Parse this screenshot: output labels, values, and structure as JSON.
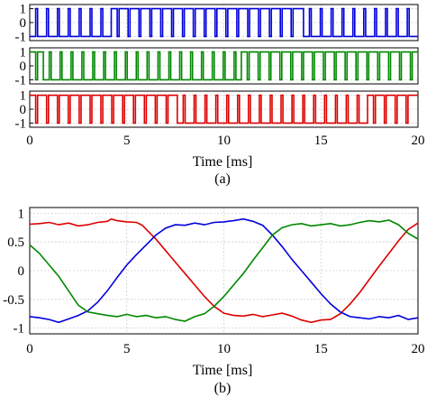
{
  "chart_data": [
    {
      "panel": "(a)",
      "type": "line",
      "xlabel": "Time [ms]",
      "xlim": [
        0,
        20
      ],
      "xticks": [
        0,
        5,
        10,
        15,
        20
      ],
      "grid": true,
      "subplots": [
        {
          "color": "#0000dd",
          "ylim": [
            -1.3,
            1.3
          ],
          "yticks": [
            1,
            0,
            -1
          ],
          "x": [
            0,
            4.2,
            14.1,
            20
          ],
          "y": [
            -1,
            1,
            -1,
            -1
          ]
        },
        {
          "color": "#008800",
          "ylim": [
            -1.3,
            1.3
          ],
          "yticks": [
            1,
            0,
            -1
          ],
          "x": [
            0,
            0.7,
            10.9,
            20
          ],
          "y": [
            1,
            -1,
            1,
            1
          ]
        },
        {
          "color": "#dd0000",
          "ylim": [
            -1.3,
            1.3
          ],
          "yticks": [
            1,
            0,
            -1
          ],
          "x": [
            0,
            7.6,
            17.4,
            20
          ],
          "y": [
            1,
            -1,
            1,
            1
          ]
        }
      ]
    },
    {
      "panel": "(b)",
      "type": "line",
      "xlabel": "Time [ms]",
      "xlim": [
        0,
        20
      ],
      "ylim": [
        -1.1,
        1.1
      ],
      "xticks": [
        0,
        5,
        10,
        15,
        20
      ],
      "yticks": [
        1,
        0.5,
        0,
        -0.5,
        -1
      ],
      "grid": true,
      "series": [
        {
          "color": "#dd0000",
          "x": [
            0,
            0.5,
            1,
            1.5,
            2,
            2.5,
            3,
            3.5,
            4,
            4.2,
            4.5,
            5,
            5.5,
            5.8,
            6,
            6.5,
            7,
            7.5,
            8,
            8.5,
            9,
            9.5,
            10,
            10.5,
            11,
            11.5,
            12,
            12.5,
            13,
            13.5,
            14,
            14.5,
            15,
            15.5,
            16,
            16.5,
            17,
            17.5,
            18,
            18.5,
            19,
            19.5,
            20
          ],
          "y": [
            0.81,
            0.82,
            0.84,
            0.8,
            0.83,
            0.78,
            0.8,
            0.84,
            0.86,
            0.9,
            0.87,
            0.85,
            0.84,
            0.79,
            0.72,
            0.55,
            0.35,
            0.15,
            -0.05,
            -0.25,
            -0.45,
            -0.62,
            -0.74,
            -0.78,
            -0.79,
            -0.76,
            -0.8,
            -0.77,
            -0.74,
            -0.79,
            -0.86,
            -0.9,
            -0.86,
            -0.85,
            -0.75,
            -0.58,
            -0.38,
            -0.15,
            0.08,
            0.3,
            0.52,
            0.72,
            0.83
          ]
        },
        {
          "color": "#0000dd",
          "x": [
            0,
            0.5,
            1,
            1.5,
            2,
            2.5,
            3,
            3.5,
            4,
            4.5,
            5,
            5.5,
            6,
            6.5,
            7,
            7.5,
            8,
            8.5,
            9,
            9.5,
            10,
            10.5,
            11,
            11.5,
            12,
            12.5,
            13,
            13.5,
            14,
            14.5,
            15,
            15.5,
            16,
            16.5,
            17,
            17.5,
            18,
            18.5,
            19,
            19.5,
            20
          ],
          "y": [
            -0.8,
            -0.82,
            -0.85,
            -0.9,
            -0.84,
            -0.78,
            -0.7,
            -0.55,
            -0.35,
            -0.12,
            0.1,
            0.28,
            0.45,
            0.62,
            0.74,
            0.8,
            0.79,
            0.83,
            0.8,
            0.84,
            0.85,
            0.87,
            0.9,
            0.86,
            0.79,
            0.62,
            0.42,
            0.2,
            0.0,
            -0.2,
            -0.4,
            -0.58,
            -0.72,
            -0.8,
            -0.82,
            -0.84,
            -0.8,
            -0.82,
            -0.78,
            -0.85,
            -0.82
          ]
        },
        {
          "color": "#008800",
          "x": [
            0,
            0.5,
            1,
            1.5,
            2,
            2.5,
            3,
            3.5,
            4,
            4.5,
            5,
            5.5,
            6,
            6.5,
            7,
            7.5,
            8,
            8.5,
            9,
            9.5,
            10,
            10.5,
            11,
            11.5,
            12,
            12.5,
            13,
            13.5,
            14,
            14.5,
            15,
            15.5,
            16,
            16.5,
            17,
            17.5,
            18,
            18.5,
            19,
            19.5,
            20
          ],
          "y": [
            0.45,
            0.3,
            0.1,
            -0.1,
            -0.35,
            -0.6,
            -0.72,
            -0.75,
            -0.78,
            -0.8,
            -0.76,
            -0.8,
            -0.78,
            -0.82,
            -0.8,
            -0.85,
            -0.88,
            -0.8,
            -0.75,
            -0.62,
            -0.45,
            -0.25,
            -0.05,
            0.18,
            0.4,
            0.62,
            0.75,
            0.8,
            0.82,
            0.78,
            0.8,
            0.82,
            0.78,
            0.8,
            0.84,
            0.87,
            0.85,
            0.88,
            0.8,
            0.65,
            0.55
          ]
        }
      ]
    }
  ]
}
